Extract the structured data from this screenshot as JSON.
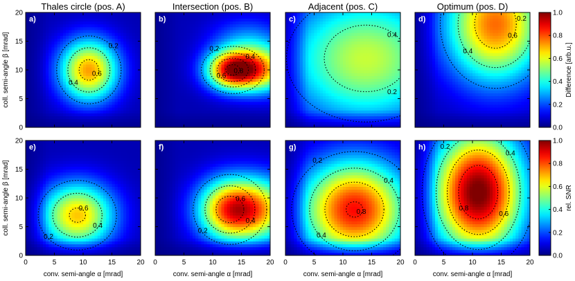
{
  "chart_data": {
    "type": "heatmap",
    "columns": [
      "Thales circle (pos. A)",
      "Intersection (pos. B)",
      "Adjacent (pos. C)",
      "Optimum (pos. D)"
    ],
    "xlabel": "conv. semi-angle α [mrad]",
    "ylabel": "coll. semi-angle β [mrad]",
    "xlim": [
      0,
      20
    ],
    "ylim": [
      0,
      20
    ],
    "xticks": [
      "0",
      "5",
      "10",
      "15",
      "20"
    ],
    "yticks": [
      "0",
      "5",
      "10",
      "15",
      "20"
    ],
    "colorscale": "jet",
    "rows": [
      {
        "name": "Difference [arb.u.]",
        "colorbar_label": "Difference [arb.u.]",
        "colorbar_ticks": [
          "0.0",
          "0.2",
          "0.4",
          "0.6",
          "0.8",
          "1.0"
        ],
        "panels": [
          {
            "label": "a)",
            "contour_labels": [
              "0.2",
              "0.6",
              "0.4"
            ],
            "peak": {
              "alpha": 11,
              "beta": 10,
              "value": 0.67
            },
            "lobes": [
              {
                "ca": 11,
                "cb": 10,
                "sa": 3.6,
                "sb": 3.8,
                "w": 0.67
              }
            ],
            "base": 0.05
          },
          {
            "label": "b)",
            "contour_labels": [
              "0.4",
              "0.8",
              "0.6",
              "0.2"
            ],
            "peak": {
              "alpha": 13.5,
              "beta": 10,
              "value": 0.9
            },
            "lobes": [
              {
                "ca": 13.5,
                "cb": 10,
                "sa": 3.2,
                "sb": 2.4,
                "w": 0.86
              },
              {
                "ca": 19,
                "cb": 10,
                "sa": 3.2,
                "sb": 2.8,
                "w": 0.5
              },
              {
                "ca": 16,
                "cb": 15,
                "sa": 4.5,
                "sb": 3,
                "w": 0.2
              }
            ],
            "base": 0.05
          },
          {
            "label": "c)",
            "contour_labels": [
              "0.4",
              "0.2"
            ],
            "peak": {
              "alpha": 14,
              "beta": 12,
              "value": 0.52
            },
            "lobes": [
              {
                "ca": 14,
                "cb": 12,
                "sa": 10,
                "sb": 8,
                "w": 0.52
              }
            ],
            "base": 0.05
          },
          {
            "label": "d)",
            "contour_labels": [
              "0.2",
              "0.6",
              "0.4"
            ],
            "peak": {
              "alpha": 14,
              "beta": 18,
              "value": 0.72
            },
            "lobes": [
              {
                "ca": 14,
                "cb": 18,
                "sa": 6,
                "sb": 7,
                "w": 0.72
              }
            ],
            "base": 0.05
          }
        ]
      },
      {
        "name": "rel. SNR",
        "colorbar_label": "rel. SNR",
        "colorbar_ticks": [
          "0.0",
          "0.2",
          "0.4",
          "0.6",
          "0.8",
          "1.0"
        ],
        "panels": [
          {
            "label": "e)",
            "contour_labels": [
              "0.6",
              "0.4",
              "0.2"
            ],
            "peak": {
              "alpha": 9,
              "beta": 7,
              "value": 0.63
            },
            "lobes": [
              {
                "ca": 9,
                "cb": 7,
                "sa": 4.5,
                "sb": 4,
                "w": 0.63
              }
            ],
            "base": 0.05
          },
          {
            "label": "f)",
            "contour_labels": [
              "0.6",
              "0.4",
              "0.2"
            ],
            "peak": {
              "alpha": 13,
              "beta": 8,
              "value": 0.75
            },
            "lobes": [
              {
                "ca": 13,
                "cb": 8,
                "sa": 4,
                "sb": 3.8,
                "w": 0.72
              },
              {
                "ca": 19,
                "cb": 8,
                "sa": 4,
                "sb": 4,
                "w": 0.45
              }
            ],
            "base": 0.05
          },
          {
            "label": "g)",
            "contour_labels": [
              "0.4",
              "0.8",
              "0.4",
              "0.2"
            ],
            "peak": {
              "alpha": 12,
              "beta": 8,
              "value": 0.82
            },
            "lobes": [
              {
                "ca": 12,
                "cb": 8,
                "sa": 6.5,
                "sb": 6,
                "w": 0.82
              }
            ],
            "base": 0.05
          },
          {
            "label": "h)",
            "contour_labels": [
              "0.4",
              "0.6",
              "0.8",
              "0.2"
            ],
            "peak": {
              "alpha": 11,
              "beta": 11,
              "value": 0.97
            },
            "lobes": [
              {
                "ca": 11,
                "cb": 11,
                "sa": 5.5,
                "sb": 7.5,
                "w": 0.97
              }
            ],
            "base": 0.05
          }
        ]
      }
    ]
  }
}
